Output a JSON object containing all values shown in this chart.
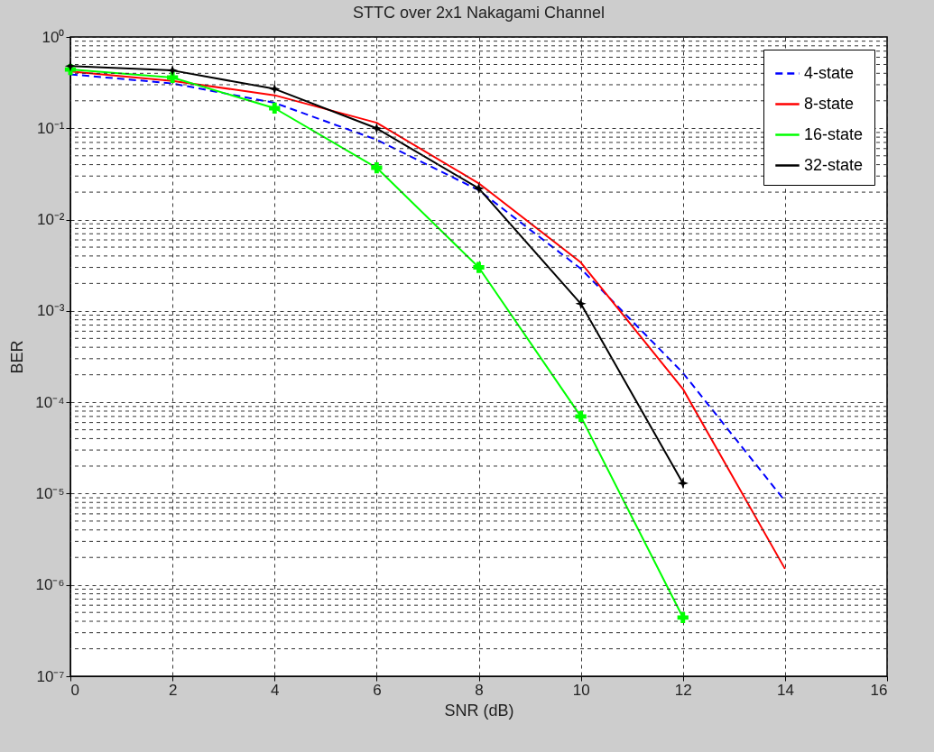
{
  "chart_data": {
    "type": "line",
    "title": "STTC over 2x1 Nakagami Channel",
    "xlabel": "SNR (dB)",
    "ylabel": "BER",
    "x": [
      0,
      2,
      4,
      6,
      8,
      10,
      12,
      14
    ],
    "series": [
      {
        "name": "4-state",
        "color": "#0000ff",
        "line_style": "dashed",
        "marker": "none",
        "values": [
          0.39,
          0.31,
          0.19,
          0.075,
          0.021,
          0.0029,
          0.00021,
          8.3e-06
        ]
      },
      {
        "name": "8-state",
        "color": "#ff0000",
        "line_style": "solid",
        "marker": "none",
        "values": [
          0.42,
          0.33,
          0.23,
          0.115,
          0.025,
          0.0034,
          0.00014,
          1.5e-06
        ]
      },
      {
        "name": "16-state",
        "color": "#00ff00",
        "line_style": "solid",
        "marker": "cross",
        "values": [
          0.44,
          0.36,
          0.166,
          0.037,
          0.003,
          7e-05,
          4.4e-07,
          null
        ]
      },
      {
        "name": "32-state",
        "color": "#000000",
        "line_style": "solid",
        "marker": "star",
        "values": [
          0.48,
          0.43,
          0.27,
          0.1,
          0.022,
          0.0012,
          1.3e-05,
          null
        ]
      }
    ],
    "xlim": [
      0,
      16
    ],
    "xticks": [
      0,
      2,
      4,
      6,
      8,
      10,
      12,
      14,
      16
    ],
    "ylim": [
      1e-07,
      1
    ],
    "log": "y",
    "yticks": [
      {
        "value": 1e-07,
        "label": "10⁻⁷"
      },
      {
        "value": 1e-06,
        "label": "10⁻⁶"
      },
      {
        "value": 1e-05,
        "label": "10⁻⁵"
      },
      {
        "value": 0.0001,
        "label": "10⁻⁴"
      },
      {
        "value": 0.001,
        "label": "10⁻³"
      },
      {
        "value": 0.01,
        "label": "10⁻²"
      },
      {
        "value": 0.1,
        "label": "10⁻¹"
      },
      {
        "value": 1,
        "label": "10⁰"
      }
    ],
    "grid": true,
    "legend": "top right"
  }
}
